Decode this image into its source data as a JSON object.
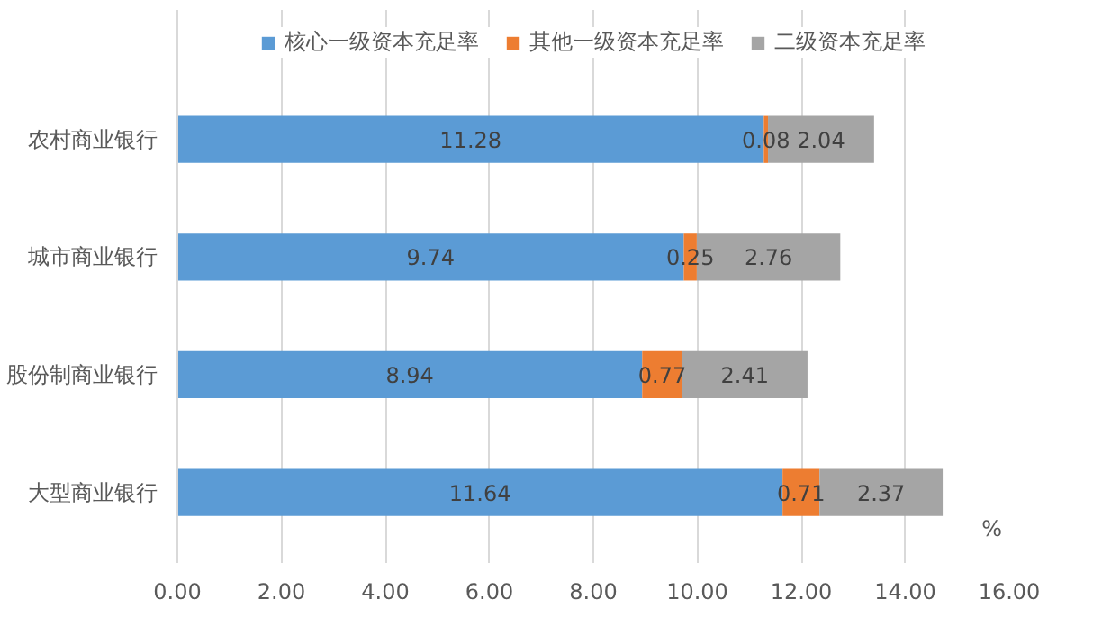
{
  "chart_data": {
    "type": "bar",
    "orientation": "horizontal",
    "stacked": true,
    "categories": [
      "农村商业银行",
      "城市商业银行",
      "股份制商业银行",
      "大型商业银行"
    ],
    "series": [
      {
        "name": "核心一级资本充足率",
        "color": "#5b9bd5",
        "values": [
          11.28,
          9.74,
          8.94,
          11.64
        ]
      },
      {
        "name": "其他一级资本充足率",
        "color": "#ed7d31",
        "values": [
          0.08,
          0.25,
          0.77,
          0.71
        ]
      },
      {
        "name": "二级资本充足率",
        "color": "#a5a5a5",
        "values": [
          2.04,
          2.76,
          2.41,
          2.37
        ]
      }
    ],
    "xlim": [
      0,
      16
    ],
    "xticks": [
      {
        "value": 0,
        "label": "0.00"
      },
      {
        "value": 2,
        "label": "2.00"
      },
      {
        "value": 4,
        "label": "4.00"
      },
      {
        "value": 6,
        "label": "6.00"
      },
      {
        "value": 8,
        "label": "8.00"
      },
      {
        "value": 10,
        "label": "10.00"
      },
      {
        "value": 12,
        "label": "12.00"
      },
      {
        "value": 14,
        "label": "14.00"
      },
      {
        "value": 16,
        "label": "16.00"
      }
    ],
    "annotations": [
      "%"
    ],
    "data_labels": true,
    "grid": "x",
    "legend": "top"
  }
}
